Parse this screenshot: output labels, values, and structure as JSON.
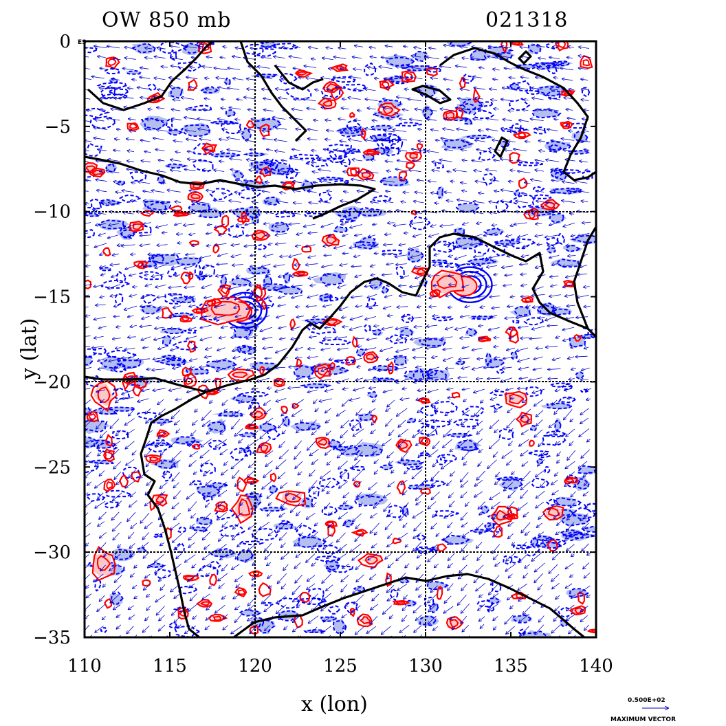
{
  "title_left": "OW 850 mb",
  "title_right": "021318",
  "xlabel": "x (lon)",
  "ylabel": "y (lat)",
  "corner_tag": "ES",
  "vector_scale_value": "0.500E+02",
  "vector_scale_label": "MAXIMUM VECTOR",
  "x_ticks": [
    "110",
    "115",
    "120",
    "125",
    "130",
    "135",
    "140"
  ],
  "y_ticks": [
    "0",
    "−5",
    "−10",
    "−15",
    "−20",
    "−25",
    "−30",
    "−35"
  ],
  "colors": {
    "positive_contour": "#ff0000",
    "positive_fill": "#ffc8c8",
    "negative_contour": "#0000ff",
    "negative_fill": "#b4bff0",
    "coastline": "#000000",
    "vectors": "#0000cc"
  },
  "map": {
    "lon_range": [
      110,
      140
    ],
    "lat_range": [
      -35,
      0
    ],
    "grid_lons": [
      120,
      130
    ],
    "grid_lats": [
      -10,
      -20,
      -30
    ],
    "features": [
      {
        "name": "cyclone-west",
        "lon": 119.4,
        "lat": -15.8
      },
      {
        "name": "cyclone-east",
        "lon": 132.6,
        "lat": -14.3
      }
    ]
  }
}
